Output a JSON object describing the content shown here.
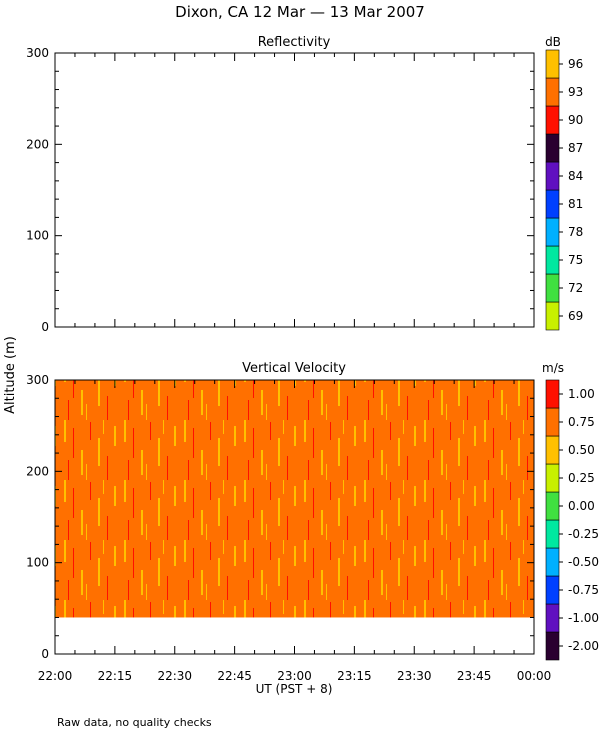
{
  "title": "Dixon, CA 12 Mar — 13 Mar 2007",
  "y_axis_label": "Altitude (m)",
  "x_axis_label": "UT  (PST + 8)",
  "footnote": "Raw data, no quality checks",
  "chart_data": [
    {
      "type": "heatmap",
      "title": "Reflectivity",
      "colorbar_unit": "dB",
      "ylim": [
        0,
        300
      ],
      "y_ticks": [
        0,
        100,
        200,
        300
      ],
      "x_ticks": [
        "22:00",
        "22:15",
        "22:30",
        "22:45",
        "23:00",
        "23:15",
        "23:30",
        "23:45",
        "00:00"
      ],
      "data_present": false,
      "colorbar": {
        "labels": [
          "69",
          "72",
          "75",
          "78",
          "81",
          "84",
          "87",
          "90",
          "93",
          "96"
        ],
        "colors": [
          "#c8f000",
          "#40e040",
          "#00e8a0",
          "#00b0ff",
          "#0040ff",
          "#6010c0",
          "#2a0030",
          "#ff1000",
          "#ff7000",
          "#ffc000"
        ]
      }
    },
    {
      "type": "heatmap",
      "title": "Vertical Velocity",
      "colorbar_unit": "m/s",
      "ylim": [
        0,
        300
      ],
      "y_ticks": [
        0,
        100,
        200,
        300
      ],
      "x_ticks": [
        "22:00",
        "22:15",
        "22:30",
        "22:45",
        "23:00",
        "23:15",
        "23:30",
        "23:45",
        "00:00"
      ],
      "data_altitude_range": [
        40,
        300
      ],
      "data_value_range": [
        0.5,
        1.0
      ],
      "colorbar": {
        "labels": [
          "-2.00",
          "-1.00",
          "-0.75",
          "-0.50",
          "-0.25",
          "0.00",
          "0.25",
          "0.50",
          "0.75",
          "1.00"
        ],
        "colors": [
          "#2a0030",
          "#6010c0",
          "#0040ff",
          "#00b0ff",
          "#00e8a0",
          "#40e040",
          "#c8f000",
          "#ffc000",
          "#ff7000",
          "#ff1000"
        ]
      }
    }
  ]
}
